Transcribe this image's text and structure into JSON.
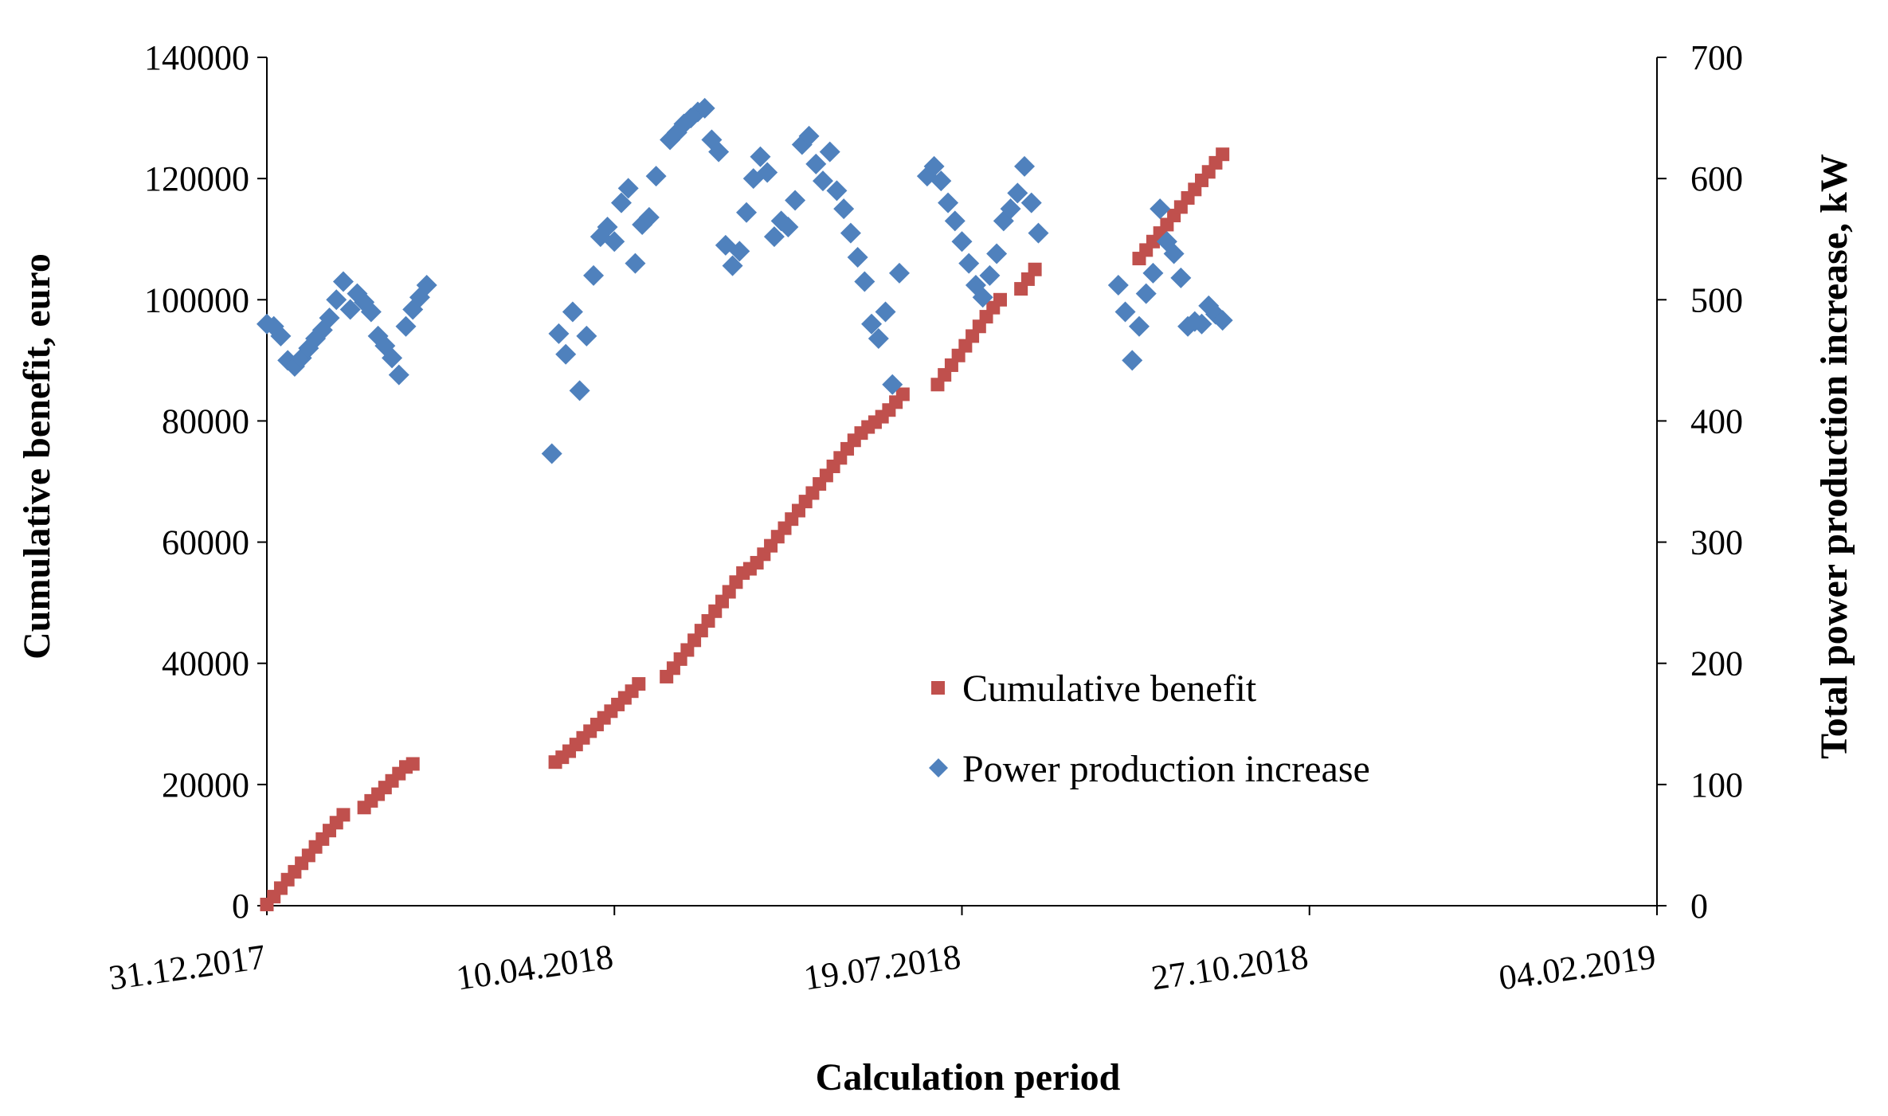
{
  "chart_data": {
    "type": "scatter",
    "title": "",
    "xlabel": "Calculation period",
    "ylabel": "Cumulative benefit, euro",
    "y2label": "Total power production increase, kW",
    "x_ticks": [
      "31.12.2017",
      "10.04.2018",
      "19.07.2018",
      "27.10.2018",
      "04.02.2019"
    ],
    "x_range": [
      "31.12.2017",
      "04.02.2019"
    ],
    "ylim": [
      0,
      140000
    ],
    "y_ticks": [
      "0",
      "20000",
      "40000",
      "60000",
      "80000",
      "100000",
      "120000",
      "140000"
    ],
    "y2lim": [
      0,
      700
    ],
    "y2_ticks": [
      "0",
      "100",
      "200",
      "300",
      "400",
      "500",
      "600",
      "700"
    ],
    "grid": false,
    "legend_position": "center-right",
    "series": [
      {
        "name": "Cumulative benefit",
        "axis": "left",
        "marker": "square",
        "color": "#C0504D",
        "points": [
          [
            "31.12.2017",
            200
          ],
          [
            "02.01.2018",
            1500
          ],
          [
            "04.01.2018",
            2900
          ],
          [
            "06.01.2018",
            4300
          ],
          [
            "08.01.2018",
            5600
          ],
          [
            "10.01.2018",
            7000
          ],
          [
            "12.01.2018",
            8300
          ],
          [
            "14.01.2018",
            9700
          ],
          [
            "16.01.2018",
            11000
          ],
          [
            "18.01.2018",
            12400
          ],
          [
            "20.01.2018",
            13700
          ],
          [
            "22.01.2018",
            15000
          ],
          [
            "28.01.2018",
            16200
          ],
          [
            "30.01.2018",
            17300
          ],
          [
            "01.02.2018",
            18400
          ],
          [
            "03.02.2018",
            19500
          ],
          [
            "05.02.2018",
            20600
          ],
          [
            "07.02.2018",
            21800
          ],
          [
            "09.02.2018",
            22900
          ],
          [
            "11.02.2018",
            23400
          ],
          [
            "24.03.2018",
            23700
          ],
          [
            "26.03.2018",
            24500
          ],
          [
            "28.03.2018",
            25500
          ],
          [
            "30.03.2018",
            26600
          ],
          [
            "01.04.2018",
            27700
          ],
          [
            "03.04.2018",
            28800
          ],
          [
            "05.04.2018",
            29900
          ],
          [
            "07.04.2018",
            31000
          ],
          [
            "09.04.2018",
            32100
          ],
          [
            "11.04.2018",
            33200
          ],
          [
            "13.04.2018",
            34300
          ],
          [
            "15.04.2018",
            35400
          ],
          [
            "17.04.2018",
            36600
          ],
          [
            "25.04.2018",
            37800
          ],
          [
            "27.04.2018",
            39200
          ],
          [
            "29.04.2018",
            40700
          ],
          [
            "01.05.2018",
            42200
          ],
          [
            "03.05.2018",
            43800
          ],
          [
            "05.05.2018",
            45400
          ],
          [
            "07.05.2018",
            47000
          ],
          [
            "09.05.2018",
            48600
          ],
          [
            "11.05.2018",
            50200
          ],
          [
            "13.05.2018",
            51800
          ],
          [
            "15.05.2018",
            53400
          ],
          [
            "17.05.2018",
            54900
          ],
          [
            "19.05.2018",
            55600
          ],
          [
            "21.05.2018",
            56600
          ],
          [
            "23.05.2018",
            58000
          ],
          [
            "25.05.2018",
            59400
          ],
          [
            "27.05.2018",
            60900
          ],
          [
            "29.05.2018",
            62300
          ],
          [
            "31.05.2018",
            63800
          ],
          [
            "02.06.2018",
            65200
          ],
          [
            "04.06.2018",
            66700
          ],
          [
            "06.06.2018",
            68100
          ],
          [
            "08.06.2018",
            69600
          ],
          [
            "10.06.2018",
            71000
          ],
          [
            "12.06.2018",
            72500
          ],
          [
            "14.06.2018",
            73900
          ],
          [
            "16.06.2018",
            75400
          ],
          [
            "18.06.2018",
            76800
          ],
          [
            "20.06.2018",
            78000
          ],
          [
            "22.06.2018",
            79000
          ],
          [
            "24.06.2018",
            79800
          ],
          [
            "26.06.2018",
            80700
          ],
          [
            "28.06.2018",
            81800
          ],
          [
            "30.06.2018",
            83100
          ],
          [
            "02.07.2018",
            84400
          ],
          [
            "12.07.2018",
            86000
          ],
          [
            "14.07.2018",
            87600
          ],
          [
            "16.07.2018",
            89200
          ],
          [
            "18.07.2018",
            90800
          ],
          [
            "20.07.2018",
            92400
          ],
          [
            "22.07.2018",
            94000
          ],
          [
            "24.07.2018",
            95600
          ],
          [
            "26.07.2018",
            97200
          ],
          [
            "28.07.2018",
            98700
          ],
          [
            "30.07.2018",
            100000
          ],
          [
            "05.08.2018",
            101800
          ],
          [
            "07.08.2018",
            103400
          ],
          [
            "09.08.2018",
            105000
          ],
          [
            "08.09.2018",
            106800
          ],
          [
            "10.09.2018",
            108200
          ],
          [
            "12.09.2018",
            109600
          ],
          [
            "14.09.2018",
            111000
          ],
          [
            "16.09.2018",
            112400
          ],
          [
            "18.09.2018",
            113900
          ],
          [
            "20.09.2018",
            115300
          ],
          [
            "22.09.2018",
            116800
          ],
          [
            "24.09.2018",
            118200
          ],
          [
            "26.09.2018",
            119700
          ],
          [
            "28.09.2018",
            121100
          ],
          [
            "30.09.2018",
            122600
          ],
          [
            "02.10.2018",
            124000
          ]
        ]
      },
      {
        "name": "Power production increase",
        "axis": "right",
        "marker": "diamond",
        "color": "#4F81BD",
        "points": [
          [
            "31.12.2017",
            480
          ],
          [
            "02.01.2018",
            478
          ],
          [
            "04.01.2018",
            470
          ],
          [
            "06.01.2018",
            450
          ],
          [
            "08.01.2018",
            445
          ],
          [
            "10.01.2018",
            452
          ],
          [
            "12.01.2018",
            460
          ],
          [
            "14.01.2018",
            468
          ],
          [
            "16.01.2018",
            475
          ],
          [
            "18.01.2018",
            485
          ],
          [
            "20.01.2018",
            500
          ],
          [
            "22.01.2018",
            515
          ],
          [
            "24.01.2018",
            492
          ],
          [
            "26.01.2018",
            505
          ],
          [
            "28.01.2018",
            498
          ],
          [
            "30.01.2018",
            490
          ],
          [
            "01.02.2018",
            470
          ],
          [
            "03.02.2018",
            462
          ],
          [
            "05.02.2018",
            452
          ],
          [
            "07.02.2018",
            438
          ],
          [
            "09.02.2018",
            478
          ],
          [
            "11.02.2018",
            492
          ],
          [
            "13.02.2018",
            502
          ],
          [
            "15.02.2018",
            512
          ],
          [
            "23.03.2018",
            373
          ],
          [
            "25.03.2018",
            472
          ],
          [
            "27.03.2018",
            455
          ],
          [
            "29.03.2018",
            490
          ],
          [
            "31.03.2018",
            425
          ],
          [
            "02.04.2018",
            470
          ],
          [
            "04.04.2018",
            520
          ],
          [
            "06.04.2018",
            552
          ],
          [
            "08.04.2018",
            560
          ],
          [
            "10.04.2018",
            548
          ],
          [
            "12.04.2018",
            580
          ],
          [
            "14.04.2018",
            592
          ],
          [
            "16.04.2018",
            530
          ],
          [
            "18.04.2018",
            562
          ],
          [
            "20.04.2018",
            568
          ],
          [
            "22.04.2018",
            602
          ],
          [
            "26.04.2018",
            632
          ],
          [
            "28.04.2018",
            638
          ],
          [
            "30.04.2018",
            645
          ],
          [
            "02.05.2018",
            650
          ],
          [
            "04.05.2018",
            655
          ],
          [
            "06.05.2018",
            658
          ],
          [
            "08.05.2018",
            632
          ],
          [
            "10.05.2018",
            622
          ],
          [
            "12.05.2018",
            545
          ],
          [
            "14.05.2018",
            528
          ],
          [
            "16.05.2018",
            540
          ],
          [
            "18.05.2018",
            572
          ],
          [
            "20.05.2018",
            600
          ],
          [
            "22.05.2018",
            618
          ],
          [
            "24.05.2018",
            605
          ],
          [
            "26.05.2018",
            552
          ],
          [
            "28.05.2018",
            565
          ],
          [
            "30.05.2018",
            560
          ],
          [
            "01.06.2018",
            582
          ],
          [
            "03.06.2018",
            628
          ],
          [
            "05.06.2018",
            635
          ],
          [
            "07.06.2018",
            612
          ],
          [
            "09.06.2018",
            598
          ],
          [
            "11.06.2018",
            622
          ],
          [
            "13.06.2018",
            590
          ],
          [
            "15.06.2018",
            575
          ],
          [
            "17.06.2018",
            555
          ],
          [
            "19.06.2018",
            535
          ],
          [
            "21.06.2018",
            515
          ],
          [
            "23.06.2018",
            480
          ],
          [
            "25.06.2018",
            468
          ],
          [
            "27.06.2018",
            490
          ],
          [
            "29.06.2018",
            430
          ],
          [
            "01.07.2018",
            522
          ],
          [
            "09.07.2018",
            602
          ],
          [
            "11.07.2018",
            610
          ],
          [
            "13.07.2018",
            598
          ],
          [
            "15.07.2018",
            580
          ],
          [
            "17.07.2018",
            565
          ],
          [
            "19.07.2018",
            548
          ],
          [
            "21.07.2018",
            530
          ],
          [
            "23.07.2018",
            512
          ],
          [
            "25.07.2018",
            502
          ],
          [
            "27.07.2018",
            520
          ],
          [
            "29.07.2018",
            538
          ],
          [
            "31.07.2018",
            565
          ],
          [
            "02.08.2018",
            575
          ],
          [
            "04.08.2018",
            588
          ],
          [
            "06.08.2018",
            610
          ],
          [
            "08.08.2018",
            580
          ],
          [
            "10.08.2018",
            555
          ],
          [
            "02.09.2018",
            512
          ],
          [
            "04.09.2018",
            490
          ],
          [
            "06.09.2018",
            450
          ],
          [
            "08.09.2018",
            478
          ],
          [
            "10.09.2018",
            505
          ],
          [
            "12.09.2018",
            522
          ],
          [
            "14.09.2018",
            575
          ],
          [
            "16.09.2018",
            548
          ],
          [
            "18.09.2018",
            538
          ],
          [
            "20.09.2018",
            518
          ],
          [
            "22.09.2018",
            478
          ],
          [
            "24.09.2018",
            482
          ],
          [
            "26.09.2018",
            480
          ],
          [
            "28.09.2018",
            495
          ],
          [
            "30.09.2018",
            488
          ],
          [
            "02.10.2018",
            483
          ]
        ]
      }
    ]
  }
}
